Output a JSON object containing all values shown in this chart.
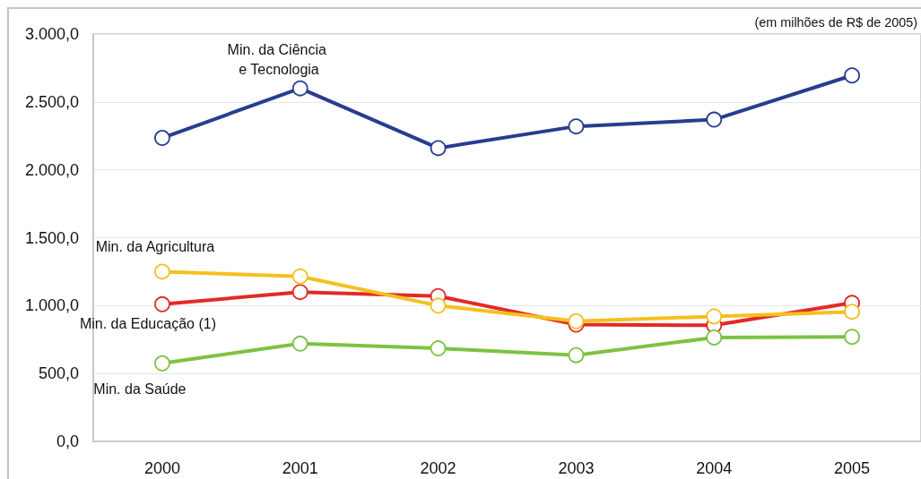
{
  "chart_data": {
    "type": "line",
    "annotations": [
      "(em milhões de R$ de 2005)"
    ],
    "categories": [
      "2000",
      "2001",
      "2002",
      "2003",
      "2004",
      "2005"
    ],
    "series": [
      {
        "name": "Min. da Ciência e Tecnologia",
        "color": "#283d8f",
        "values": [
          2235,
          2600,
          2160,
          2320,
          2370,
          2695
        ]
      },
      {
        "name": "Min. da Educação (1)",
        "color": "#e32a26",
        "values": [
          1010,
          1100,
          1070,
          860,
          855,
          1020
        ]
      },
      {
        "name": "Min. da Agricultura",
        "color": "#f5c01e",
        "values": [
          1250,
          1215,
          1000,
          885,
          920,
          955
        ]
      },
      {
        "name": "Min. da Saúde",
        "color": "#7dc242",
        "values": [
          575,
          720,
          685,
          635,
          765,
          770
        ]
      }
    ],
    "ylim": [
      0,
      3000
    ],
    "yticks": [
      {
        "value": 0,
        "label": "0,0"
      },
      {
        "value": 500,
        "label": "500,0"
      },
      {
        "value": 1000,
        "label": "1.000,0"
      },
      {
        "value": 1500,
        "label": "1.500,0"
      },
      {
        "value": 2000,
        "label": "2.000,0"
      },
      {
        "value": 2500,
        "label": "2.500,0"
      },
      {
        "value": 3000,
        "label": "3.000,0"
      }
    ],
    "grid": "y",
    "marker": "circle",
    "line_style": "solid"
  }
}
